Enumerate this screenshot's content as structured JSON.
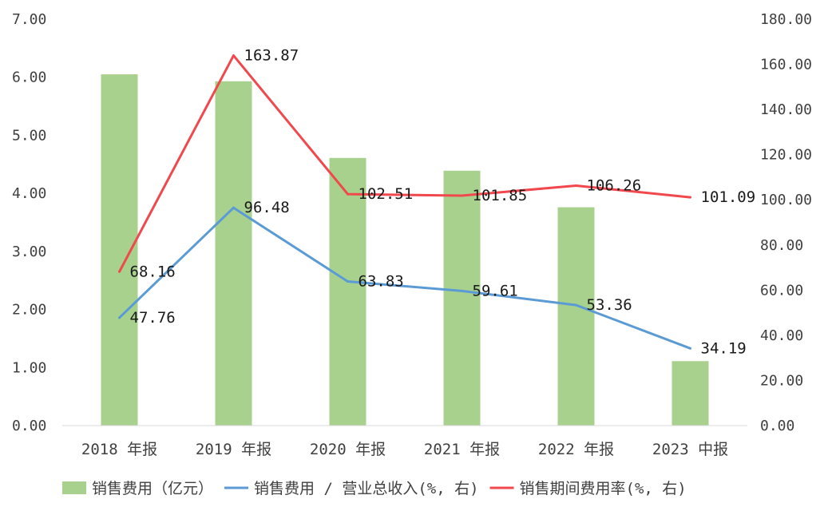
{
  "chart_data": {
    "type": "bar",
    "categories": [
      "2018 年报",
      "2019 年报",
      "2020 年报",
      "2021 年报",
      "2022 年报",
      "2023 中报"
    ],
    "series": [
      {
        "name": "销售费用（亿元）",
        "type": "bar",
        "axis": "left",
        "color": "#a9d18e",
        "values": [
          6.05,
          5.93,
          4.61,
          4.39,
          3.76,
          1.11
        ]
      },
      {
        "name": "销售费用 / 营业总收入(%, 右)",
        "type": "line",
        "axis": "right",
        "color": "#5b9bd5",
        "values": [
          47.76,
          96.48,
          63.83,
          59.61,
          53.36,
          34.19
        ],
        "labels": [
          "47.76",
          "96.48",
          "63.83",
          "59.61",
          "53.36",
          "34.19"
        ]
      },
      {
        "name": "销售期间费用率(%, 右)",
        "type": "line",
        "axis": "right",
        "color": "#f0484d",
        "values": [
          68.16,
          163.87,
          102.51,
          101.85,
          106.26,
          101.09
        ],
        "labels": [
          "68.16",
          "163.87",
          "102.51",
          "101.85",
          "106.26",
          "101.09"
        ]
      }
    ],
    "y_left": {
      "min": 0,
      "max": 7,
      "step": 1,
      "ticks": [
        "0.00",
        "1.00",
        "2.00",
        "3.00",
        "4.00",
        "5.00",
        "6.00",
        "7.00"
      ]
    },
    "y_right": {
      "min": 0,
      "max": 180,
      "step": 20,
      "ticks": [
        "0.00",
        "20.00",
        "40.00",
        "60.00",
        "80.00",
        "100.00",
        "120.00",
        "140.00",
        "160.00",
        "180.00"
      ]
    },
    "legend": {
      "position": "bottom"
    },
    "grid": false
  }
}
